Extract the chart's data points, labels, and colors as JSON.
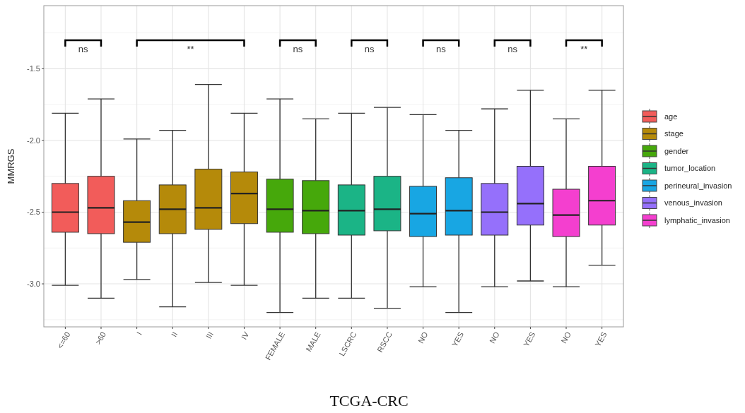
{
  "chart_data": {
    "type": "box",
    "ylabel": "MMRGS",
    "categories": [
      "<=60",
      ">60",
      "I",
      "II",
      "III",
      "IV",
      "FEMALE",
      "MALE",
      "LSCRC",
      "RSCC",
      "NO",
      "YES",
      "NO",
      "YES",
      "NO",
      "YES"
    ],
    "ylim": [
      -3.3,
      -1.06
    ],
    "yticks": [
      {
        "value": -3,
        "label": "-3.0"
      },
      {
        "value": -2.5,
        "label": "-2.5"
      },
      {
        "value": -2,
        "label": "-2.0"
      },
      {
        "value": -1.5,
        "label": "-1.5"
      }
    ],
    "grid": true,
    "legend": "right",
    "series": [
      {
        "name": "age",
        "color": "#f25c5a",
        "boxes": [
          {
            "low": -3.01,
            "q1": -2.64,
            "median": -2.5,
            "q3": -2.3,
            "high": -1.81
          },
          {
            "low": -3.1,
            "q1": -2.65,
            "median": -2.47,
            "q3": -2.25,
            "high": -1.71
          },
          null,
          null,
          null,
          null,
          null,
          null,
          null,
          null,
          null,
          null,
          null,
          null,
          null,
          null
        ]
      },
      {
        "name": "stage",
        "color": "#b58a0a",
        "boxes": [
          null,
          null,
          {
            "low": -2.97,
            "q1": -2.71,
            "median": -2.57,
            "q3": -2.42,
            "high": -1.99
          },
          {
            "low": -3.16,
            "q1": -2.65,
            "median": -2.48,
            "q3": -2.31,
            "high": -1.93
          },
          {
            "low": -2.99,
            "q1": -2.62,
            "median": -2.47,
            "q3": -2.2,
            "high": -1.61
          },
          {
            "low": -3.01,
            "q1": -2.58,
            "median": -2.37,
            "q3": -2.22,
            "high": -1.81
          },
          null,
          null,
          null,
          null,
          null,
          null,
          null,
          null,
          null,
          null
        ]
      },
      {
        "name": "gender",
        "color": "#46a80b",
        "boxes": [
          null,
          null,
          null,
          null,
          null,
          null,
          {
            "low": -3.2,
            "q1": -2.64,
            "median": -2.48,
            "q3": -2.27,
            "high": -1.71
          },
          {
            "low": -3.1,
            "q1": -2.65,
            "median": -2.49,
            "q3": -2.28,
            "high": -1.85
          },
          null,
          null,
          null,
          null,
          null,
          null,
          null,
          null
        ]
      },
      {
        "name": "tumor_location",
        "color": "#1bb486",
        "boxes": [
          null,
          null,
          null,
          null,
          null,
          null,
          null,
          null,
          {
            "low": -3.1,
            "q1": -2.66,
            "median": -2.49,
            "q3": -2.31,
            "high": -1.81
          },
          {
            "low": -3.17,
            "q1": -2.63,
            "median": -2.48,
            "q3": -2.25,
            "high": -1.77
          },
          null,
          null,
          null,
          null,
          null,
          null
        ]
      },
      {
        "name": "perineural_invasion",
        "color": "#18a6e3",
        "boxes": [
          null,
          null,
          null,
          null,
          null,
          null,
          null,
          null,
          null,
          null,
          {
            "low": -3.02,
            "q1": -2.67,
            "median": -2.51,
            "q3": -2.32,
            "high": -1.82
          },
          {
            "low": -3.2,
            "q1": -2.66,
            "median": -2.49,
            "q3": -2.26,
            "high": -1.93
          },
          null,
          null,
          null,
          null
        ]
      },
      {
        "name": "venous_invasion",
        "color": "#9570fb",
        "boxes": [
          null,
          null,
          null,
          null,
          null,
          null,
          null,
          null,
          null,
          null,
          null,
          null,
          {
            "low": -3.02,
            "q1": -2.66,
            "median": -2.5,
            "q3": -2.3,
            "high": -1.78
          },
          {
            "low": -2.98,
            "q1": -2.59,
            "median": -2.44,
            "q3": -2.18,
            "high": -1.65
          },
          null,
          null
        ]
      },
      {
        "name": "lymphatic_invasion",
        "color": "#f43fcf",
        "boxes": [
          null,
          null,
          null,
          null,
          null,
          null,
          null,
          null,
          null,
          null,
          null,
          null,
          null,
          null,
          {
            "low": -3.02,
            "q1": -2.67,
            "median": -2.52,
            "q3": -2.34,
            "high": -1.85
          },
          {
            "low": -2.87,
            "q1": -2.59,
            "median": -2.42,
            "q3": -2.18,
            "high": -1.65
          }
        ]
      }
    ],
    "annotations": [
      "ns",
      "**",
      "ns",
      "ns",
      "ns",
      "ns",
      "**",
      "TCGA-CRC"
    ]
  }
}
